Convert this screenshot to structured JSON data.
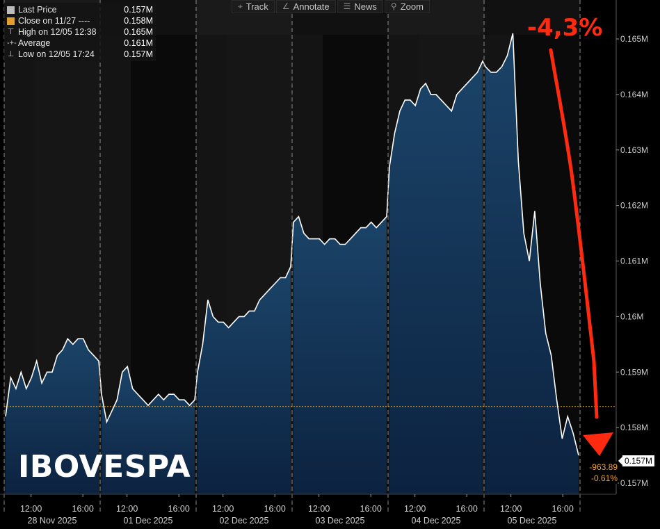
{
  "legend": {
    "rows": [
      {
        "label": "Last Price",
        "value": "0.157M",
        "swatch": "#bdbdbd",
        "glyph": ""
      },
      {
        "label": "Close on 11/27 ----",
        "value": "0.158M",
        "swatch": "#e0a030",
        "glyph": ""
      },
      {
        "label": "High on 12/05 12:38",
        "value": "0.165M",
        "swatch": "",
        "glyph": "⊤"
      },
      {
        "label": "Average",
        "value": "0.161M",
        "swatch": "",
        "glyph": "-+-"
      },
      {
        "label": "Low on 12/05 17:24",
        "value": "0.157M",
        "swatch": "",
        "glyph": "⊥"
      }
    ]
  },
  "toolbar": {
    "items": [
      {
        "label": "Track",
        "icon": "crosshair-icon"
      },
      {
        "label": "Annotate",
        "icon": "pencil-icon"
      },
      {
        "label": "News",
        "icon": "news-icon"
      },
      {
        "label": "Zoom",
        "icon": "magnifier-icon"
      }
    ]
  },
  "watermark": "IBOVESPA",
  "annotation": "-4,3%",
  "last_price_badge": "0.157M",
  "change": {
    "points": "-963.89",
    "percent": "-0.61%"
  },
  "colors": {
    "line": "#ffffff",
    "fill_top": "#1b4468",
    "fill_bottom": "#0c2240",
    "prev_close_line": "#e0b040",
    "annotation": "#ff2a10",
    "change_text": "#f0a030"
  },
  "chart_data": {
    "type": "area",
    "title": "",
    "xlabel": "",
    "ylabel": "",
    "ylim": [
      0.15675,
      0.1655
    ],
    "y_unit": "M",
    "yticks": [
      0.157,
      0.158,
      0.159,
      0.16,
      0.161,
      0.162,
      0.163,
      0.164,
      0.165
    ],
    "ytick_labels": [
      "0.157M",
      "0.158M",
      "0.159M",
      "0.16M",
      "0.161M",
      "0.162M",
      "0.163M",
      "0.164M",
      "0.165M"
    ],
    "previous_close": 0.15838,
    "days": [
      {
        "date": "28 Nov 2025",
        "times": [
          "12:00",
          "16:00"
        ]
      },
      {
        "date": "01 Dec 2025",
        "times": [
          "12:00",
          "16:00"
        ]
      },
      {
        "date": "02 Dec 2025",
        "times": [
          "12:00",
          "16:00"
        ]
      },
      {
        "date": "03 Dec 2025",
        "times": [
          "12:00",
          "16:00"
        ]
      },
      {
        "date": "04 Dec 2025",
        "times": [
          "12:00",
          "16:00"
        ]
      },
      {
        "date": "05 Dec 2025",
        "times": [
          "12:00",
          "16:00"
        ]
      }
    ],
    "series": [
      {
        "values": [
          [
            0.1582,
            0.1589,
            0.1587,
            0.159,
            0.1587,
            0.1589,
            0.1592,
            0.1588,
            0.159,
            0.159,
            0.1593,
            0.1594,
            0.1596,
            0.1595,
            0.1596,
            0.1596,
            0.1594,
            0.1593,
            0.1592
          ],
          [
            0.1586,
            0.1581,
            0.1583,
            0.1585,
            0.159,
            0.1591,
            0.1587,
            0.1586,
            0.1585,
            0.1584,
            0.1585,
            0.1586,
            0.1585,
            0.1586,
            0.1586,
            0.1585,
            0.1585,
            0.1584,
            0.1585
          ],
          [
            0.159,
            0.1595,
            0.1603,
            0.16,
            0.1599,
            0.1599,
            0.1598,
            0.1599,
            0.16,
            0.16,
            0.1601,
            0.1601,
            0.1603,
            0.1604,
            0.1605,
            0.1606,
            0.1607,
            0.1607,
            0.1609
          ],
          [
            0.1617,
            0.1618,
            0.1615,
            0.1614,
            0.1614,
            0.1614,
            0.1613,
            0.1614,
            0.1614,
            0.1613,
            0.1613,
            0.1614,
            0.1615,
            0.1616,
            0.1616,
            0.1617,
            0.1616,
            0.1617,
            0.1618
          ],
          [
            0.1627,
            0.1633,
            0.1637,
            0.1639,
            0.1639,
            0.1638,
            0.1641,
            0.1642,
            0.164,
            0.164,
            0.1639,
            0.1638,
            0.1637,
            0.164,
            0.1641,
            0.1642,
            0.1643,
            0.1644,
            0.1646
          ],
          [
            0.1645,
            0.1644,
            0.1644,
            0.1645,
            0.1647,
            0.1651,
            0.1628,
            0.1615,
            0.161,
            0.1619,
            0.1606,
            0.1597,
            0.1593,
            0.1585,
            0.1578,
            0.1582,
            0.1579,
            0.1575
          ]
        ]
      }
    ]
  }
}
